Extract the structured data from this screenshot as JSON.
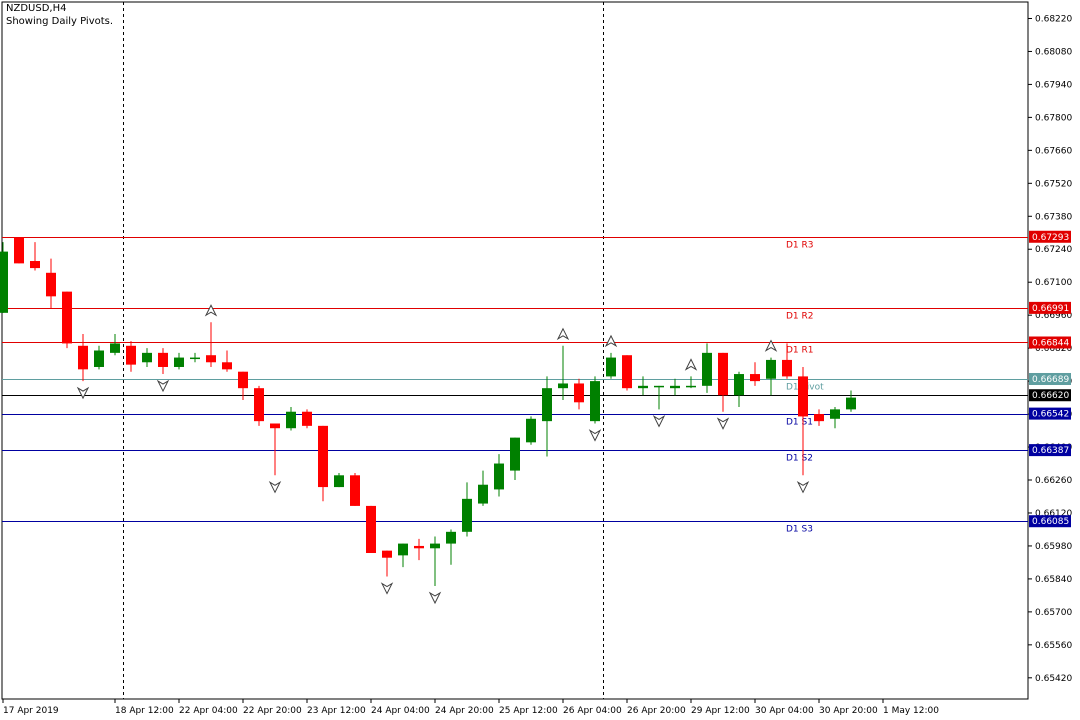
{
  "header": {
    "symbol": "NZDUSD,H4",
    "note": "Showing Daily Pivots."
  },
  "colors": {
    "bull": "#008000",
    "bear": "#ff0000",
    "resistance": "#e00000",
    "support": "#0000a0",
    "pivot": "#5f9ea0",
    "current": "#000000",
    "separator": "#000000",
    "fractal": "#404040"
  },
  "chart_data": {
    "type": "candlestick",
    "symbol": "NZDUSD",
    "timeframe": "H4",
    "ylim": [
      0.6533,
      0.6829
    ],
    "y_ticks": [
      "0.68220",
      "0.68080",
      "0.67940",
      "0.67800",
      "0.67660",
      "0.67520",
      "0.67380",
      "0.67240",
      "0.67100",
      "0.66960",
      "0.66820",
      "0.66680",
      "0.66540",
      "0.66400",
      "0.66260",
      "0.66120",
      "0.65980",
      "0.65840",
      "0.65700",
      "0.65560",
      "0.65420"
    ],
    "x_ticks": [
      {
        "bar": 0,
        "label": "17 Apr 2019"
      },
      {
        "bar": 7,
        "label": "18 Apr 12:00"
      },
      {
        "bar": 11,
        "label": "22 Apr 04:00"
      },
      {
        "bar": 15,
        "label": "22 Apr 20:00"
      },
      {
        "bar": 19,
        "label": "23 Apr 12:00"
      },
      {
        "bar": 23,
        "label": "24 Apr 04:00"
      },
      {
        "bar": 27,
        "label": "24 Apr 20:00"
      },
      {
        "bar": 31,
        "label": "25 Apr 12:00"
      },
      {
        "bar": 35,
        "label": "26 Apr 04:00"
      },
      {
        "bar": 39,
        "label": "26 Apr 20:00"
      },
      {
        "bar": 43,
        "label": "29 Apr 12:00"
      },
      {
        "bar": 47,
        "label": "30 Apr 04:00"
      },
      {
        "bar": 51,
        "label": "30 Apr 20:00"
      },
      {
        "bar": 55,
        "label": "1 May 12:00"
      }
    ],
    "day_separators": [
      7,
      37
    ],
    "candles": [
      {
        "o": 0.6697,
        "h": 0.6727,
        "l": 0.6697,
        "c": 0.6723
      },
      {
        "o": 0.6729,
        "h": 0.6729,
        "l": 0.6718,
        "c": 0.6718
      },
      {
        "o": 0.6719,
        "h": 0.6727,
        "l": 0.6715,
        "c": 0.6716
      },
      {
        "o": 0.6714,
        "h": 0.672,
        "l": 0.6699,
        "c": 0.6704
      },
      {
        "o": 0.6706,
        "h": 0.6706,
        "l": 0.6682,
        "c": 0.6684
      },
      {
        "o": 0.6683,
        "h": 0.6688,
        "l": 0.6668,
        "c": 0.6673
      },
      {
        "o": 0.6674,
        "h": 0.6683,
        "l": 0.6673,
        "c": 0.6681
      },
      {
        "o": 0.668,
        "h": 0.6688,
        "l": 0.6679,
        "c": 0.6684
      },
      {
        "o": 0.6683,
        "h": 0.6685,
        "l": 0.6672,
        "c": 0.6675
      },
      {
        "o": 0.6676,
        "h": 0.6682,
        "l": 0.6674,
        "c": 0.668
      },
      {
        "o": 0.668,
        "h": 0.6682,
        "l": 0.6671,
        "c": 0.6674
      },
      {
        "o": 0.6674,
        "h": 0.668,
        "l": 0.6673,
        "c": 0.6678
      },
      {
        "o": 0.6678,
        "h": 0.668,
        "l": 0.6676,
        "c": 0.6678
      },
      {
        "o": 0.6679,
        "h": 0.6693,
        "l": 0.6674,
        "c": 0.6676
      },
      {
        "o": 0.6676,
        "h": 0.6681,
        "l": 0.6672,
        "c": 0.6673
      },
      {
        "o": 0.6672,
        "h": 0.6672,
        "l": 0.666,
        "c": 0.6665
      },
      {
        "o": 0.6665,
        "h": 0.6666,
        "l": 0.6649,
        "c": 0.6651
      },
      {
        "o": 0.665,
        "h": 0.665,
        "l": 0.6628,
        "c": 0.6648
      },
      {
        "o": 0.6648,
        "h": 0.6657,
        "l": 0.6647,
        "c": 0.6655
      },
      {
        "o": 0.6655,
        "h": 0.6656,
        "l": 0.6648,
        "c": 0.6649
      },
      {
        "o": 0.6649,
        "h": 0.6649,
        "l": 0.6617,
        "c": 0.6623
      },
      {
        "o": 0.6623,
        "h": 0.6629,
        "l": 0.6623,
        "c": 0.6628
      },
      {
        "o": 0.6628,
        "h": 0.6629,
        "l": 0.6615,
        "c": 0.6615
      },
      {
        "o": 0.6615,
        "h": 0.6615,
        "l": 0.6595,
        "c": 0.6595
      },
      {
        "o": 0.6596,
        "h": 0.6596,
        "l": 0.6585,
        "c": 0.6593
      },
      {
        "o": 0.6594,
        "h": 0.6599,
        "l": 0.6589,
        "c": 0.6599
      },
      {
        "o": 0.6598,
        "h": 0.6601,
        "l": 0.6592,
        "c": 0.6597
      },
      {
        "o": 0.6597,
        "h": 0.6602,
        "l": 0.6581,
        "c": 0.6599
      },
      {
        "o": 0.6599,
        "h": 0.6605,
        "l": 0.659,
        "c": 0.6604
      },
      {
        "o": 0.6604,
        "h": 0.6625,
        "l": 0.6602,
        "c": 0.6618
      },
      {
        "o": 0.6616,
        "h": 0.663,
        "l": 0.6615,
        "c": 0.6624
      },
      {
        "o": 0.6622,
        "h": 0.6637,
        "l": 0.6619,
        "c": 0.6633
      },
      {
        "o": 0.663,
        "h": 0.6644,
        "l": 0.6626,
        "c": 0.6644
      },
      {
        "o": 0.6642,
        "h": 0.6653,
        "l": 0.6641,
        "c": 0.6652
      },
      {
        "o": 0.6651,
        "h": 0.667,
        "l": 0.6636,
        "c": 0.6665
      },
      {
        "o": 0.6665,
        "h": 0.6683,
        "l": 0.666,
        "c": 0.6667
      },
      {
        "o": 0.6667,
        "h": 0.6669,
        "l": 0.6656,
        "c": 0.6659
      },
      {
        "o": 0.6651,
        "h": 0.667,
        "l": 0.665,
        "c": 0.6668
      },
      {
        "o": 0.667,
        "h": 0.668,
        "l": 0.6669,
        "c": 0.6678
      },
      {
        "o": 0.6679,
        "h": 0.6679,
        "l": 0.6664,
        "c": 0.6665
      },
      {
        "o": 0.6665,
        "h": 0.667,
        "l": 0.6662,
        "c": 0.6666
      },
      {
        "o": 0.6666,
        "h": 0.6666,
        "l": 0.6656,
        "c": 0.6666
      },
      {
        "o": 0.6665,
        "h": 0.6669,
        "l": 0.6662,
        "c": 0.6666
      },
      {
        "o": 0.6666,
        "h": 0.667,
        "l": 0.6665,
        "c": 0.6666
      },
      {
        "o": 0.6666,
        "h": 0.6684,
        "l": 0.6663,
        "c": 0.668
      },
      {
        "o": 0.668,
        "h": 0.668,
        "l": 0.6655,
        "c": 0.6662
      },
      {
        "o": 0.6662,
        "h": 0.6672,
        "l": 0.6657,
        "c": 0.6671
      },
      {
        "o": 0.6671,
        "h": 0.6676,
        "l": 0.6666,
        "c": 0.6668
      },
      {
        "o": 0.6669,
        "h": 0.6678,
        "l": 0.6662,
        "c": 0.6677
      },
      {
        "o": 0.6677,
        "h": 0.6684,
        "l": 0.6669,
        "c": 0.667
      },
      {
        "o": 0.667,
        "h": 0.6674,
        "l": 0.6628,
        "c": 0.6653
      },
      {
        "o": 0.6654,
        "h": 0.6656,
        "l": 0.6649,
        "c": 0.6651
      },
      {
        "o": 0.6652,
        "h": 0.6657,
        "l": 0.6648,
        "c": 0.6656
      },
      {
        "o": 0.6656,
        "h": 0.6664,
        "l": 0.6655,
        "c": 0.6661
      }
    ],
    "fractals_up": [
      13,
      35,
      38,
      43,
      48
    ],
    "fractals_down": [
      5,
      10,
      17,
      24,
      27,
      37,
      41,
      45,
      50
    ],
    "levels": [
      {
        "name": "D1 R3",
        "value": 0.67293,
        "label": "0.67293",
        "kind": "resistance"
      },
      {
        "name": "D1 R2",
        "value": 0.66991,
        "label": "0.66991",
        "kind": "resistance"
      },
      {
        "name": "D1 R1",
        "value": 0.66844,
        "label": "0.66844",
        "kind": "resistance"
      },
      {
        "name": "D1 Pivot",
        "value": 0.66689,
        "label": "0.66689",
        "kind": "pivot"
      },
      {
        "name": "D1 S1",
        "value": 0.66542,
        "label": "0.66542",
        "kind": "support"
      },
      {
        "name": "D1 S2",
        "value": 0.66387,
        "label": "0.66387",
        "kind": "support"
      },
      {
        "name": "D1 S3",
        "value": 0.66085,
        "label": "0.66085",
        "kind": "support"
      }
    ],
    "current_price": {
      "value": 0.6662,
      "label": "0.66620"
    }
  }
}
